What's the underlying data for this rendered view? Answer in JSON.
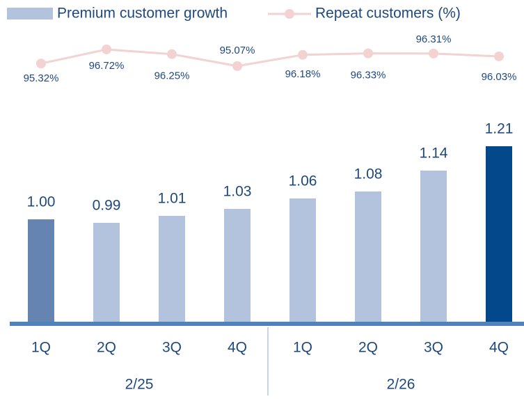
{
  "chart_data": {
    "type": "combo",
    "categories": [
      "1Q",
      "2Q",
      "3Q",
      "4Q",
      "1Q",
      "2Q",
      "3Q",
      "4Q"
    ],
    "groups": [
      "2/25",
      "2/26"
    ],
    "series": [
      {
        "name": "Premium customer growth",
        "type": "bar",
        "color": "#b4c3dd",
        "colors": [
          "#6684b1",
          "#b4c3dd",
          "#b4c3dd",
          "#b4c3dd",
          "#b4c3dd",
          "#b4c3dd",
          "#b4c3dd",
          "#03488a"
        ],
        "values": [
          1.0,
          0.99,
          1.01,
          1.03,
          1.06,
          1.08,
          1.14,
          1.21
        ],
        "value_labels": [
          "1.00",
          "0.99",
          "1.01",
          "1.03",
          "1.06",
          "1.08",
          "1.14",
          "1.21"
        ]
      },
      {
        "name": "Repeat customers (%)",
        "type": "line",
        "axis": "y2",
        "color": "#f2d2d2",
        "values": [
          95.32,
          96.72,
          96.25,
          95.07,
          96.18,
          96.33,
          96.31,
          96.03
        ],
        "value_labels": [
          "95.32%",
          "96.72%",
          "96.25%",
          "95.07%",
          "96.18%",
          "96.33%",
          "96.31%",
          "96.03%"
        ]
      }
    ],
    "ylim": [
      0.7,
      1.25
    ],
    "y2lim": [
      90,
      100
    ]
  }
}
